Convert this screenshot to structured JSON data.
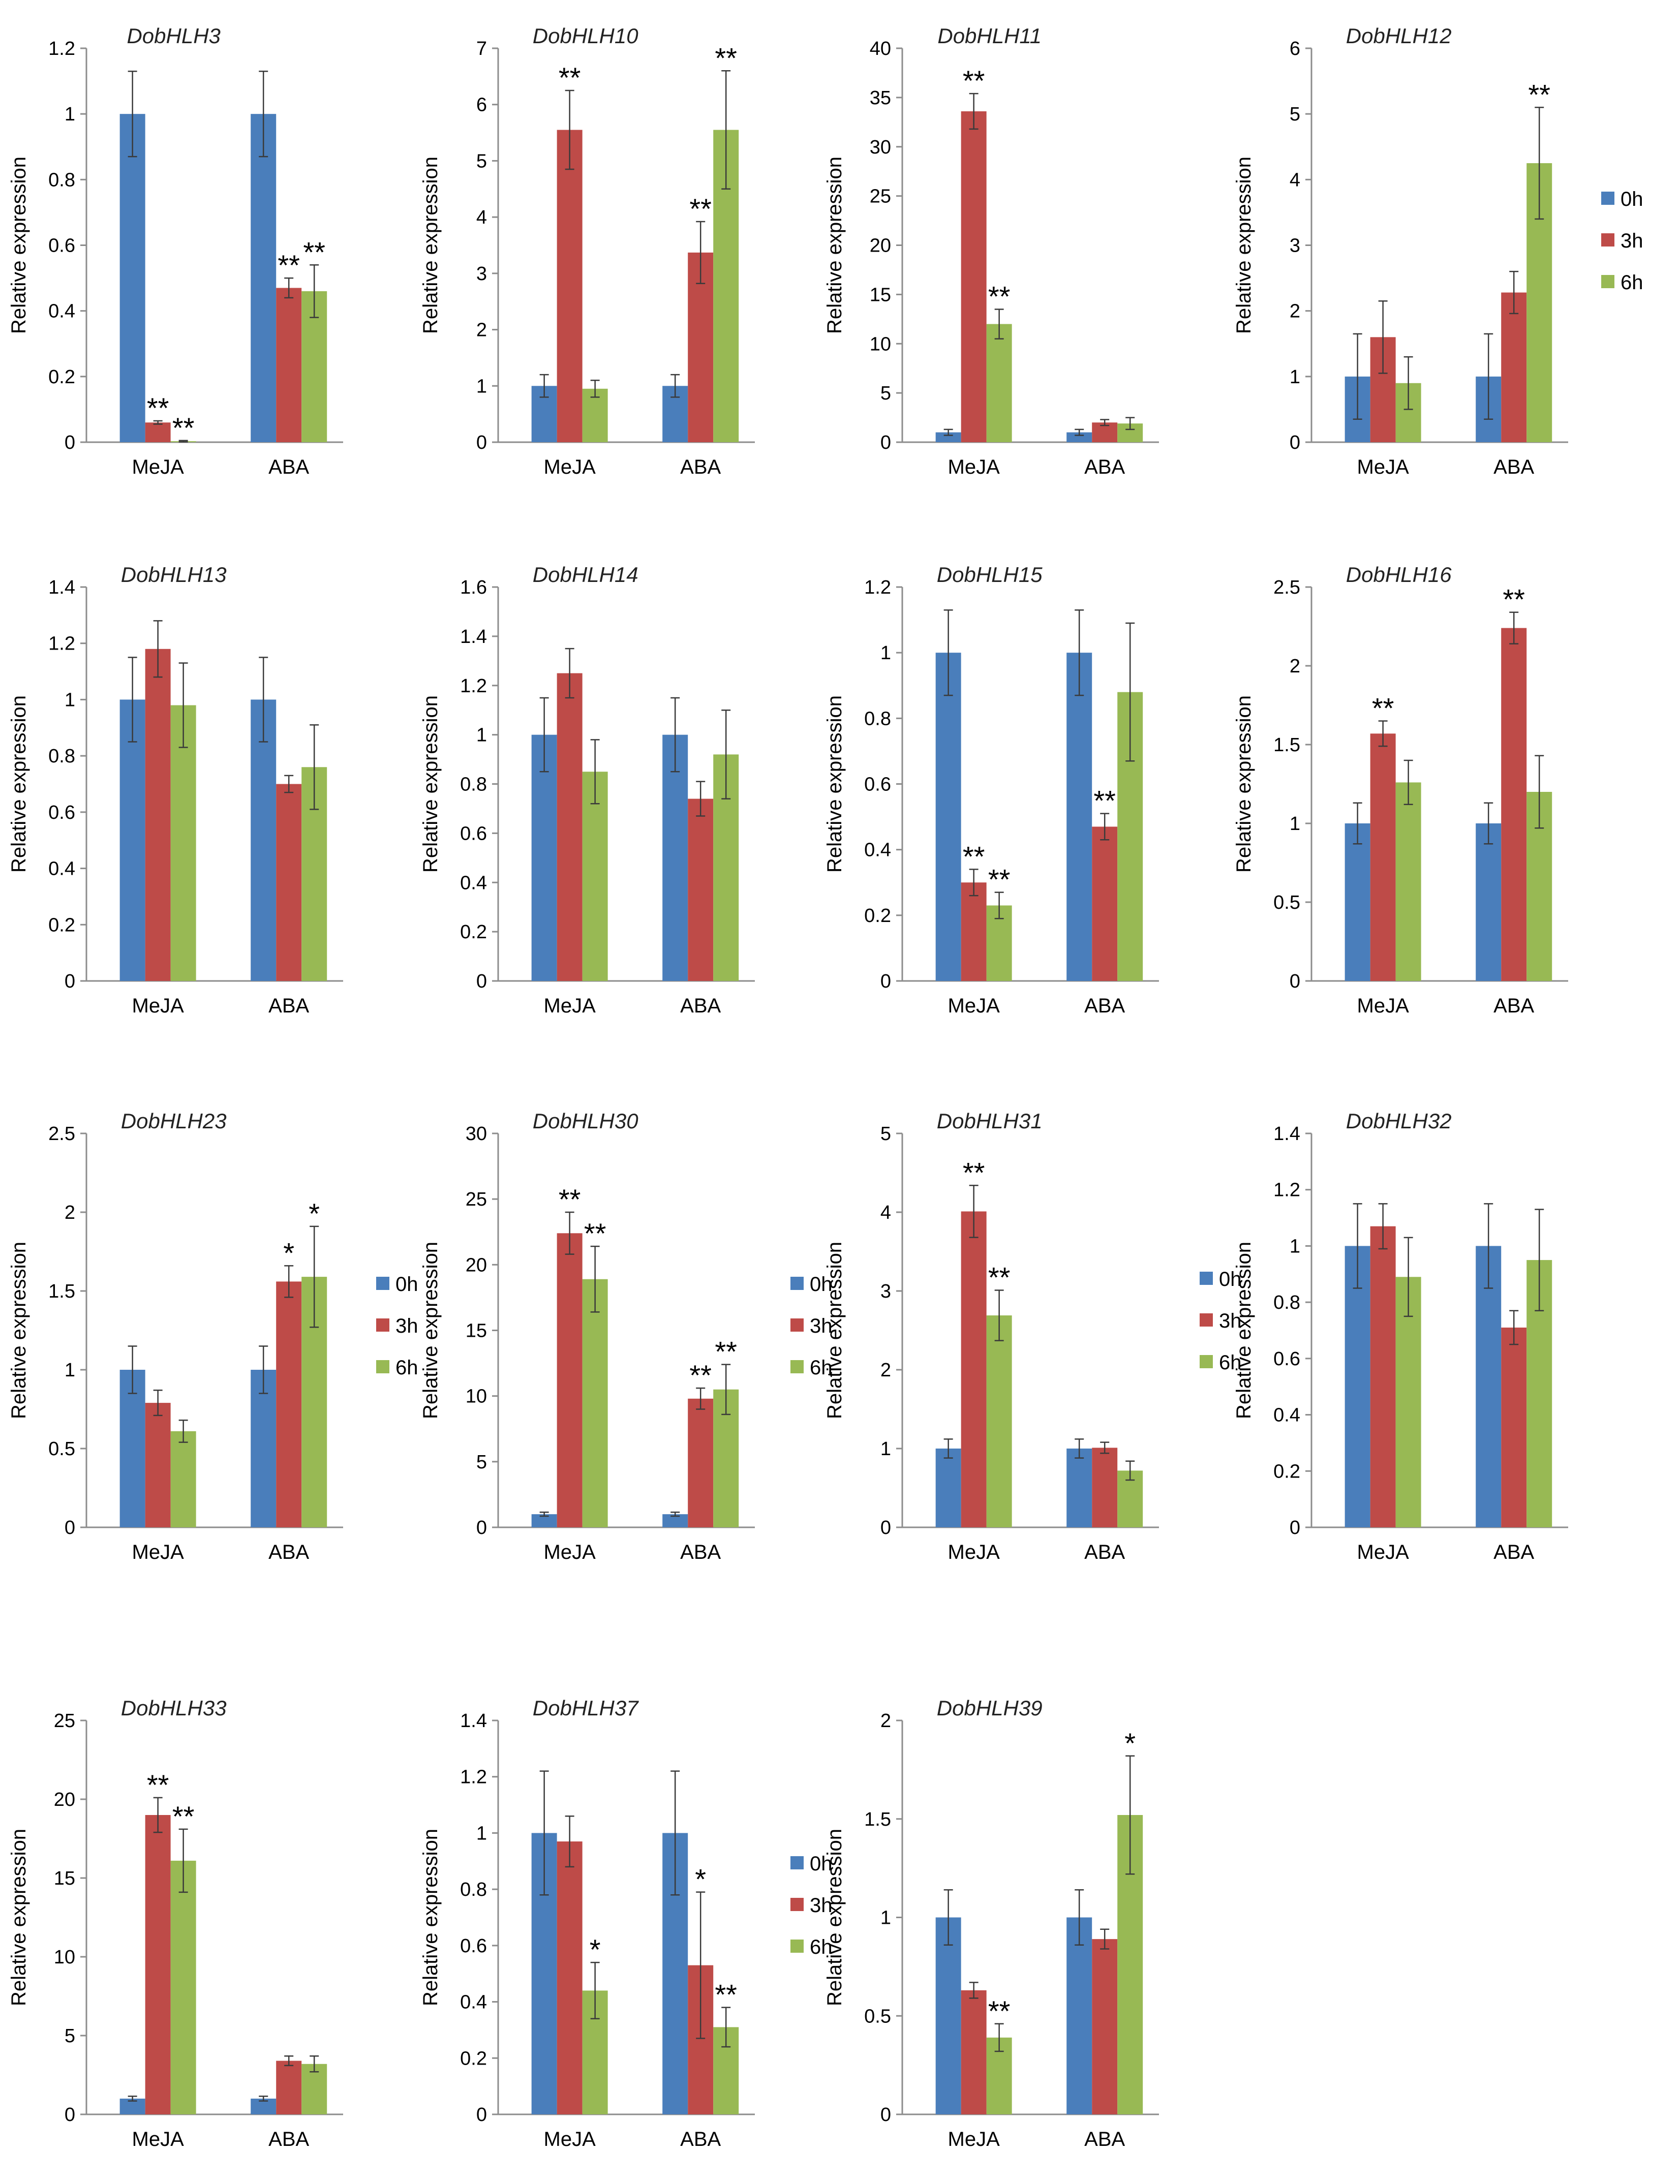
{
  "figure": {
    "y_axis_label": "Relative expression",
    "categories": [
      "MeJA",
      "ABA"
    ],
    "series_names": [
      "0h",
      "3h",
      "6h"
    ],
    "series_colors": [
      "#4a7ebb",
      "#be4b48",
      "#98b954"
    ]
  },
  "legend": {
    "items": [
      {
        "label": "0h",
        "color": "#4a7ebb"
      },
      {
        "label": "3h",
        "color": "#be4b48"
      },
      {
        "label": "6h",
        "color": "#98b954"
      }
    ]
  },
  "chart_data": [
    {
      "type": "bar",
      "title": "DobHLH3",
      "ylabel": "Relative expression",
      "categories": [
        "MeJA",
        "ABA"
      ],
      "ylim": [
        0,
        1.2
      ],
      "ytick_step": 0.2,
      "series": [
        {
          "name": "0h",
          "values": [
            1.0,
            1.0
          ],
          "errors": [
            0.13,
            0.13
          ]
        },
        {
          "name": "3h",
          "values": [
            0.06,
            0.47
          ],
          "errors": [
            0.005,
            0.03
          ]
        },
        {
          "name": "6h",
          "values": [
            0.003,
            0.46
          ],
          "errors": [
            0.002,
            0.08
          ]
        }
      ],
      "significance": [
        [
          "",
          ""
        ],
        [
          "**",
          "**"
        ],
        [
          "**",
          "**"
        ]
      ]
    },
    {
      "type": "bar",
      "title": "DobHLH10",
      "ylabel": "Relative expression",
      "categories": [
        "MeJA",
        "ABA"
      ],
      "ylim": [
        0,
        7
      ],
      "ytick_step": 1,
      "series": [
        {
          "name": "0h",
          "values": [
            1.0,
            1.0
          ],
          "errors": [
            0.2,
            0.2
          ]
        },
        {
          "name": "3h",
          "values": [
            5.55,
            3.37
          ],
          "errors": [
            0.7,
            0.55
          ]
        },
        {
          "name": "6h",
          "values": [
            0.95,
            5.55
          ],
          "errors": [
            0.15,
            1.05
          ]
        }
      ],
      "significance": [
        [
          "",
          ""
        ],
        [
          "**",
          "**"
        ],
        [
          "",
          "**"
        ]
      ]
    },
    {
      "type": "bar",
      "title": "DobHLH11",
      "ylabel": "Relative expression",
      "categories": [
        "MeJA",
        "ABA"
      ],
      "ylim": [
        0,
        40
      ],
      "ytick_step": 5,
      "series": [
        {
          "name": "0h",
          "values": [
            1.0,
            1.0
          ],
          "errors": [
            0.3,
            0.3
          ]
        },
        {
          "name": "3h",
          "values": [
            33.6,
            2.0
          ],
          "errors": [
            1.8,
            0.3
          ]
        },
        {
          "name": "6h",
          "values": [
            12.0,
            1.9
          ],
          "errors": [
            1.5,
            0.6
          ]
        }
      ],
      "significance": [
        [
          "",
          ""
        ],
        [
          "**",
          ""
        ],
        [
          "**",
          ""
        ]
      ]
    },
    {
      "type": "bar",
      "title": "DobHLH12",
      "ylabel": "Relative expression",
      "categories": [
        "MeJA",
        "ABA"
      ],
      "ylim": [
        0,
        6
      ],
      "ytick_step": 1,
      "series": [
        {
          "name": "0h",
          "values": [
            1.0,
            1.0
          ],
          "errors": [
            0.65,
            0.65
          ]
        },
        {
          "name": "3h",
          "values": [
            1.6,
            2.28
          ],
          "errors": [
            0.55,
            0.32
          ]
        },
        {
          "name": "6h",
          "values": [
            0.9,
            4.25
          ],
          "errors": [
            0.4,
            0.85
          ]
        }
      ],
      "significance": [
        [
          "",
          ""
        ],
        [
          "",
          ""
        ],
        [
          "",
          "**"
        ]
      ]
    },
    {
      "type": "bar",
      "title": "DobHLH13",
      "ylabel": "Relative expression",
      "categories": [
        "MeJA",
        "ABA"
      ],
      "ylim": [
        0,
        1.4
      ],
      "ytick_step": 0.2,
      "series": [
        {
          "name": "0h",
          "values": [
            1.0,
            1.0
          ],
          "errors": [
            0.15,
            0.15
          ]
        },
        {
          "name": "3h",
          "values": [
            1.18,
            0.7
          ],
          "errors": [
            0.1,
            0.03
          ]
        },
        {
          "name": "6h",
          "values": [
            0.98,
            0.76
          ],
          "errors": [
            0.15,
            0.15
          ]
        }
      ],
      "significance": [
        [
          "",
          ""
        ],
        [
          "",
          ""
        ],
        [
          "",
          ""
        ]
      ]
    },
    {
      "type": "bar",
      "title": "DobHLH14",
      "ylabel": "Relative expression",
      "categories": [
        "MeJA",
        "ABA"
      ],
      "ylim": [
        0,
        1.6
      ],
      "ytick_step": 0.2,
      "series": [
        {
          "name": "0h",
          "values": [
            1.0,
            1.0
          ],
          "errors": [
            0.15,
            0.15
          ]
        },
        {
          "name": "3h",
          "values": [
            1.25,
            0.74
          ],
          "errors": [
            0.1,
            0.07
          ]
        },
        {
          "name": "6h",
          "values": [
            0.85,
            0.92
          ],
          "errors": [
            0.13,
            0.18
          ]
        }
      ],
      "significance": [
        [
          "",
          ""
        ],
        [
          "",
          ""
        ],
        [
          "",
          ""
        ]
      ]
    },
    {
      "type": "bar",
      "title": "DobHLH15",
      "ylabel": "Relative expression",
      "categories": [
        "MeJA",
        "ABA"
      ],
      "ylim": [
        0,
        1.2
      ],
      "ytick_step": 0.2,
      "series": [
        {
          "name": "0h",
          "values": [
            1.0,
            1.0
          ],
          "errors": [
            0.13,
            0.13
          ]
        },
        {
          "name": "3h",
          "values": [
            0.3,
            0.47
          ],
          "errors": [
            0.04,
            0.04
          ]
        },
        {
          "name": "6h",
          "values": [
            0.23,
            0.88
          ],
          "errors": [
            0.04,
            0.21
          ]
        }
      ],
      "significance": [
        [
          "",
          ""
        ],
        [
          "**",
          "**"
        ],
        [
          "**",
          ""
        ]
      ]
    },
    {
      "type": "bar",
      "title": "DobHLH16",
      "ylabel": "Relative expression",
      "categories": [
        "MeJA",
        "ABA"
      ],
      "ylim": [
        0,
        2.5
      ],
      "ytick_step": 0.5,
      "series": [
        {
          "name": "0h",
          "values": [
            1.0,
            1.0
          ],
          "errors": [
            0.13,
            0.13
          ]
        },
        {
          "name": "3h",
          "values": [
            1.57,
            2.24
          ],
          "errors": [
            0.08,
            0.1
          ]
        },
        {
          "name": "6h",
          "values": [
            1.26,
            1.2
          ],
          "errors": [
            0.14,
            0.23
          ]
        }
      ],
      "significance": [
        [
          "",
          ""
        ],
        [
          "**",
          "**"
        ],
        [
          "",
          ""
        ]
      ]
    },
    {
      "type": "bar",
      "title": "DobHLH23",
      "ylabel": "Relative expression",
      "categories": [
        "MeJA",
        "ABA"
      ],
      "ylim": [
        0,
        2.5
      ],
      "ytick_step": 0.5,
      "series": [
        {
          "name": "0h",
          "values": [
            1.0,
            1.0
          ],
          "errors": [
            0.15,
            0.15
          ]
        },
        {
          "name": "3h",
          "values": [
            0.79,
            1.56
          ],
          "errors": [
            0.08,
            0.1
          ]
        },
        {
          "name": "6h",
          "values": [
            0.61,
            1.59
          ],
          "errors": [
            0.07,
            0.32
          ]
        }
      ],
      "significance": [
        [
          "",
          ""
        ],
        [
          "",
          "*"
        ],
        [
          "",
          "*"
        ]
      ]
    },
    {
      "type": "bar",
      "title": "DobHLH30",
      "ylabel": "Relative expression",
      "categories": [
        "MeJA",
        "ABA"
      ],
      "ylim": [
        0,
        30
      ],
      "ytick_step": 5,
      "series": [
        {
          "name": "0h",
          "values": [
            1.0,
            1.0
          ],
          "errors": [
            0.15,
            0.15
          ]
        },
        {
          "name": "3h",
          "values": [
            22.4,
            9.8
          ],
          "errors": [
            1.6,
            0.8
          ]
        },
        {
          "name": "6h",
          "values": [
            18.9,
            10.5
          ],
          "errors": [
            2.5,
            1.9
          ]
        }
      ],
      "significance": [
        [
          "",
          ""
        ],
        [
          "**",
          "**"
        ],
        [
          "**",
          "**"
        ]
      ]
    },
    {
      "type": "bar",
      "title": "DobHLH31",
      "ylabel": "Relative expression",
      "categories": [
        "MeJA",
        "ABA"
      ],
      "ylim": [
        0,
        5
      ],
      "ytick_step": 1,
      "series": [
        {
          "name": "0h",
          "values": [
            1.0,
            1.0
          ],
          "errors": [
            0.12,
            0.12
          ]
        },
        {
          "name": "3h",
          "values": [
            4.01,
            1.01
          ],
          "errors": [
            0.33,
            0.07
          ]
        },
        {
          "name": "6h",
          "values": [
            2.69,
            0.72
          ],
          "errors": [
            0.32,
            0.12
          ]
        }
      ],
      "significance": [
        [
          "",
          ""
        ],
        [
          "**",
          ""
        ],
        [
          "**",
          ""
        ]
      ]
    },
    {
      "type": "bar",
      "title": "DobHLH32",
      "ylabel": "Relative expression",
      "categories": [
        "MeJA",
        "ABA"
      ],
      "ylim": [
        0,
        1.4
      ],
      "ytick_step": 0.2,
      "series": [
        {
          "name": "0h",
          "values": [
            1.0,
            1.0
          ],
          "errors": [
            0.15,
            0.15
          ]
        },
        {
          "name": "3h",
          "values": [
            1.07,
            0.71
          ],
          "errors": [
            0.08,
            0.06
          ]
        },
        {
          "name": "6h",
          "values": [
            0.89,
            0.95
          ],
          "errors": [
            0.14,
            0.18
          ]
        }
      ],
      "significance": [
        [
          "",
          ""
        ],
        [
          "",
          ""
        ],
        [
          "",
          ""
        ]
      ]
    },
    {
      "type": "bar",
      "title": "DobHLH33",
      "ylabel": "Relative expression",
      "categories": [
        "MeJA",
        "ABA"
      ],
      "ylim": [
        0,
        25
      ],
      "ytick_step": 5,
      "series": [
        {
          "name": "0h",
          "values": [
            1.0,
            1.0
          ],
          "errors": [
            0.15,
            0.15
          ]
        },
        {
          "name": "3h",
          "values": [
            19.0,
            3.4
          ],
          "errors": [
            1.1,
            0.3
          ]
        },
        {
          "name": "6h",
          "values": [
            16.1,
            3.2
          ],
          "errors": [
            2.0,
            0.5
          ]
        }
      ],
      "significance": [
        [
          "",
          ""
        ],
        [
          "**",
          ""
        ],
        [
          "**",
          ""
        ]
      ]
    },
    {
      "type": "bar",
      "title": "DobHLH37",
      "ylabel": "Relative expression",
      "categories": [
        "MeJA",
        "ABA"
      ],
      "ylim": [
        0,
        1.4
      ],
      "ytick_step": 0.2,
      "series": [
        {
          "name": "0h",
          "values": [
            1.0,
            1.0
          ],
          "errors": [
            0.22,
            0.22
          ]
        },
        {
          "name": "3h",
          "values": [
            0.97,
            0.53
          ],
          "errors": [
            0.09,
            0.26
          ]
        },
        {
          "name": "6h",
          "values": [
            0.44,
            0.31
          ],
          "errors": [
            0.1,
            0.07
          ]
        }
      ],
      "significance": [
        [
          "",
          ""
        ],
        [
          "",
          "*"
        ],
        [
          "*",
          "**"
        ]
      ]
    },
    {
      "type": "bar",
      "title": "DobHLH39",
      "ylabel": "Relative expression",
      "categories": [
        "MeJA",
        "ABA"
      ],
      "ylim": [
        0,
        2
      ],
      "ytick_step": 0.5,
      "series": [
        {
          "name": "0h",
          "values": [
            1.0,
            1.0
          ],
          "errors": [
            0.14,
            0.14
          ]
        },
        {
          "name": "3h",
          "values": [
            0.63,
            0.89
          ],
          "errors": [
            0.04,
            0.05
          ]
        },
        {
          "name": "6h",
          "values": [
            0.39,
            1.52
          ],
          "errors": [
            0.07,
            0.3
          ]
        }
      ],
      "significance": [
        [
          "",
          ""
        ],
        [
          "",
          ""
        ],
        [
          "**",
          "*"
        ]
      ]
    }
  ]
}
